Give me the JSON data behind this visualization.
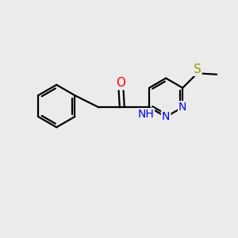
{
  "background_color": "#ebebeb",
  "bond_color": "#000000",
  "figsize": [
    3.0,
    3.0
  ],
  "dpi": 100,
  "bond_lw": 1.6,
  "atoms": {
    "O": {
      "color": "#ff0000",
      "fontsize": 11
    },
    "N": {
      "color": "#0000ee",
      "fontsize": 10
    },
    "S": {
      "color": "#999900",
      "fontsize": 11
    },
    "NH": {
      "color": "#0000ee",
      "fontsize": 10
    }
  },
  "xlim": [
    0,
    10
  ],
  "ylim": [
    0,
    10
  ]
}
